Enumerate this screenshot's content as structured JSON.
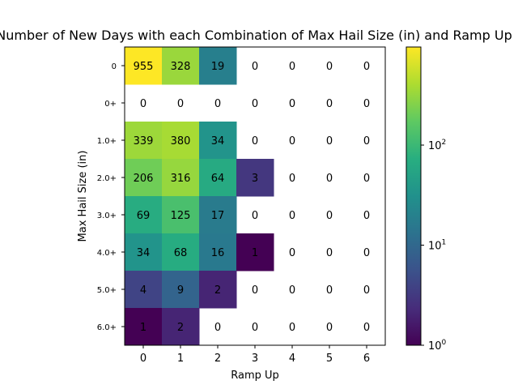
{
  "chart_data": {
    "type": "heatmap",
    "title": "Number of New Days with each Combination of Max Hail Size (in) and Ramp Up",
    "xlabel": "Ramp Up",
    "ylabel": "Max Hail Size (in)",
    "x_categories": [
      "0",
      "1",
      "2",
      "3",
      "4",
      "5",
      "6"
    ],
    "y_categories": [
      "0",
      "0+",
      "1.0+",
      "2.0+",
      "3.0+",
      "4.0+",
      "5.0+",
      "6.0+"
    ],
    "values": [
      [
        955,
        328,
        19,
        0,
        0,
        0,
        0
      ],
      [
        0,
        0,
        0,
        0,
        0,
        0,
        0
      ],
      [
        339,
        380,
        34,
        0,
        0,
        0,
        0
      ],
      [
        206,
        316,
        64,
        3,
        0,
        0,
        0
      ],
      [
        69,
        125,
        17,
        0,
        0,
        0,
        0
      ],
      [
        34,
        68,
        16,
        1,
        0,
        0,
        0
      ],
      [
        4,
        9,
        2,
        0,
        0,
        0,
        0
      ],
      [
        1,
        2,
        0,
        0,
        0,
        0,
        0
      ]
    ],
    "colorscale": "viridis",
    "color_scale_type": "log",
    "color_range": [
      1,
      955
    ],
    "colorbar_ticks": [
      {
        "value": 1,
        "base": "10",
        "exp": "0"
      },
      {
        "value": 10,
        "base": "10",
        "exp": "1"
      },
      {
        "value": 100,
        "base": "10",
        "exp": "2"
      }
    ],
    "zero_cell_color": "#ffffff"
  }
}
